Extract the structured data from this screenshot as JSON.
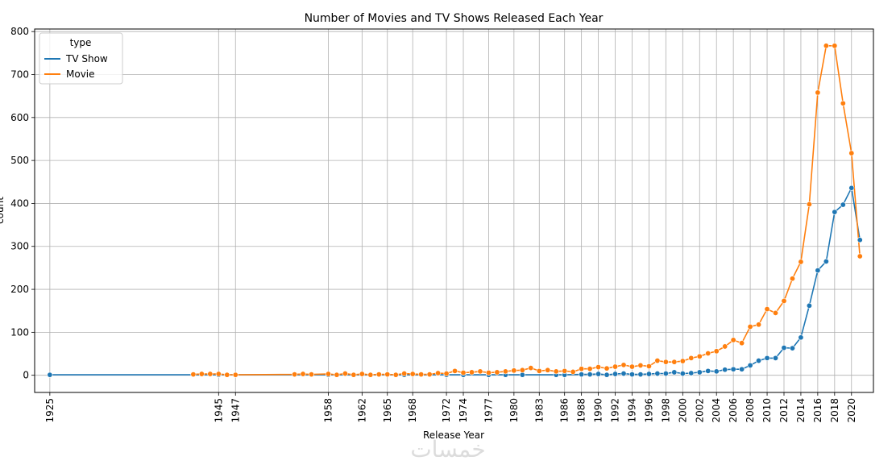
{
  "chart_data": {
    "type": "line",
    "title": "Number of Movies and TV Shows Released Each Year",
    "xlabel": "Release Year",
    "ylabel": "count",
    "xlim": [
      1923.2,
      2022.6
    ],
    "ylim": [
      -40,
      806
    ],
    "yticks": [
      0,
      100,
      200,
      300,
      400,
      500,
      600,
      700,
      800
    ],
    "xticks": [
      1925,
      1945,
      1947,
      1958,
      1962,
      1965,
      1968,
      1972,
      1974,
      1977,
      1980,
      1983,
      1986,
      1988,
      1990,
      1992,
      1994,
      1996,
      1998,
      2000,
      2002,
      2004,
      2006,
      2008,
      2010,
      2012,
      2014,
      2016,
      2018,
      2020
    ],
    "grid": true,
    "legend": {
      "title": "type",
      "position": "top-left"
    },
    "series": [
      {
        "name": "TV Show",
        "color": "#1f77b4",
        "x": [
          1925,
          1945,
          1958,
          1963,
          1967,
          1972,
          1974,
          1977,
          1979,
          1981,
          1985,
          1986,
          1988,
          1989,
          1990,
          1991,
          1992,
          1993,
          1994,
          1995,
          1996,
          1997,
          1998,
          1999,
          2000,
          2001,
          2002,
          2003,
          2004,
          2005,
          2006,
          2007,
          2008,
          2009,
          2010,
          2011,
          2012,
          2013,
          2014,
          2015,
          2016,
          2017,
          2018,
          2019,
          2020,
          2021
        ],
        "y": [
          1,
          1,
          1,
          1,
          1,
          1,
          1,
          1,
          1,
          1,
          1,
          1,
          2,
          2,
          3,
          1,
          3,
          4,
          2,
          2,
          3,
          4,
          4,
          7,
          4,
          5,
          7,
          10,
          9,
          13,
          14,
          14,
          23,
          34,
          40,
          40,
          64,
          63,
          88,
          162,
          244,
          265,
          380,
          397,
          436,
          315
        ]
      },
      {
        "name": "Movie",
        "color": "#ff7f0e",
        "x": [
          1942,
          1943,
          1944,
          1945,
          1946,
          1947,
          1954,
          1955,
          1956,
          1958,
          1959,
          1960,
          1961,
          1962,
          1963,
          1964,
          1965,
          1966,
          1967,
          1968,
          1969,
          1970,
          1971,
          1972,
          1973,
          1974,
          1975,
          1976,
          1977,
          1978,
          1979,
          1980,
          1981,
          1982,
          1983,
          1984,
          1985,
          1986,
          1987,
          1988,
          1989,
          1990,
          1991,
          1992,
          1993,
          1994,
          1995,
          1996,
          1997,
          1998,
          1999,
          2000,
          2001,
          2002,
          2003,
          2004,
          2005,
          2006,
          2007,
          2008,
          2009,
          2010,
          2011,
          2012,
          2013,
          2014,
          2015,
          2016,
          2017,
          2018,
          2019,
          2020,
          2021
        ],
        "y": [
          2,
          3,
          3,
          3,
          1,
          1,
          2,
          3,
          2,
          3,
          1,
          4,
          1,
          3,
          1,
          2,
          2,
          1,
          4,
          3,
          2,
          2,
          5,
          4,
          10,
          6,
          7,
          9,
          6,
          7,
          9,
          11,
          12,
          17,
          10,
          12,
          9,
          10,
          8,
          15,
          15,
          19,
          16,
          20,
          24,
          20,
          23,
          21,
          34,
          31,
          31,
          33,
          40,
          44,
          51,
          56,
          67,
          82,
          75,
          113,
          118,
          154,
          145,
          173,
          225,
          264,
          398,
          658,
          767,
          767,
          633,
          517,
          277
        ]
      }
    ]
  },
  "watermark": "خمسات"
}
